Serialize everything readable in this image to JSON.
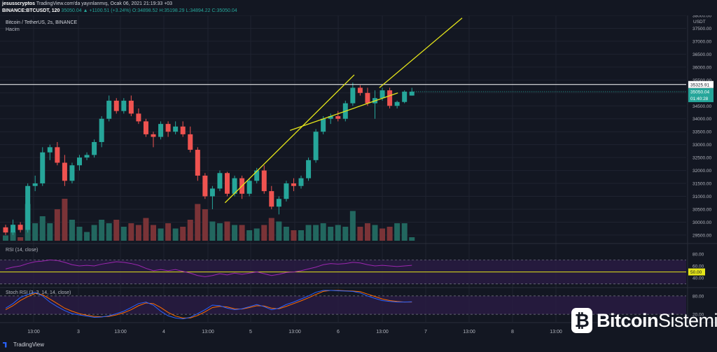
{
  "header": {
    "author": "jesusscryptos",
    "published": "TradingView.com'da yayınlanmış, Ocak 06, 2021 21:19:33 +03",
    "symbol": "BINANCE:BTCUSDT, 120",
    "last": "35050.04",
    "change": "▲ +1100.51 (+3.24%)",
    "ohlc": "O:34898.52 H:35198.29 L:34894.22 C:35050.04"
  },
  "chart_data": {
    "type": "candlestick",
    "title": "Bitcoin / TetherUS, 2s, BINANCE",
    "subtitle": "Hacim",
    "currency": "USDT",
    "ylim": [
      29200,
      38000
    ],
    "y_ticks": [
      29500,
      30000,
      30500,
      31000,
      31500,
      32000,
      32500,
      33000,
      33500,
      34000,
      34500,
      35000,
      35500,
      36000,
      36500,
      37000,
      37500,
      38000
    ],
    "x_ticks": [
      "13:00",
      "3",
      "13:00",
      "4",
      "13:00",
      "5",
      "13:00",
      "6",
      "13:00",
      "7",
      "13:00",
      "8",
      "13:00"
    ],
    "horizontal_line": 35325.91,
    "horizontal_line_label": "35325.91",
    "last_price_label": "35050.04",
    "countdown_label": "01:40:28",
    "candles": [
      [
        29800,
        29900,
        29500,
        29600
      ],
      [
        29600,
        30100,
        29500,
        29900
      ],
      [
        29900,
        30000,
        29600,
        29700
      ],
      [
        29700,
        31500,
        29600,
        31400
      ],
      [
        31400,
        31800,
        31200,
        31500
      ],
      [
        31500,
        32900,
        31400,
        32700
      ],
      [
        32700,
        33000,
        32400,
        32900
      ],
      [
        32900,
        33100,
        32200,
        32300
      ],
      [
        32300,
        32600,
        31400,
        31600
      ],
      [
        31600,
        32300,
        31500,
        32200
      ],
      [
        32200,
        32600,
        32000,
        32500
      ],
      [
        32500,
        32700,
        32400,
        32600
      ],
      [
        32600,
        33200,
        32500,
        33100
      ],
      [
        33100,
        34100,
        32900,
        34000
      ],
      [
        34000,
        34900,
        33900,
        34700
      ],
      [
        34700,
        34800,
        34200,
        34300
      ],
      [
        34300,
        34800,
        34200,
        34700
      ],
      [
        34700,
        34900,
        34100,
        34200
      ],
      [
        34200,
        34400,
        33800,
        33900
      ],
      [
        33900,
        34000,
        33300,
        33400
      ],
      [
        33400,
        33500,
        32900,
        33300
      ],
      [
        33300,
        33900,
        33200,
        33800
      ],
      [
        33800,
        33900,
        33300,
        33500
      ],
      [
        33500,
        33900,
        33400,
        33700
      ],
      [
        33700,
        33900,
        33300,
        33400
      ],
      [
        33400,
        33700,
        32700,
        32800
      ],
      [
        32800,
        32900,
        31600,
        31800
      ],
      [
        31800,
        31900,
        30900,
        31000
      ],
      [
        31000,
        31400,
        30500,
        31300
      ],
      [
        31300,
        32000,
        31200,
        31900
      ],
      [
        31900,
        31950,
        31000,
        31100
      ],
      [
        31100,
        31800,
        31000,
        31700
      ],
      [
        31700,
        31800,
        30900,
        31100
      ],
      [
        31100,
        31700,
        31000,
        31600
      ],
      [
        31600,
        32100,
        31500,
        32000
      ],
      [
        32000,
        32200,
        31100,
        31200
      ],
      [
        31200,
        31400,
        30500,
        30600
      ],
      [
        30600,
        31000,
        30300,
        30900
      ],
      [
        30900,
        31600,
        30800,
        31500
      ],
      [
        31500,
        31700,
        31200,
        31400
      ],
      [
        31400,
        31800,
        31300,
        31700
      ],
      [
        31700,
        32500,
        31600,
        32400
      ],
      [
        32400,
        33600,
        32300,
        33500
      ],
      [
        33500,
        34100,
        33400,
        34000
      ],
      [
        34000,
        34200,
        33800,
        34100
      ],
      [
        34100,
        34300,
        33900,
        34000
      ],
      [
        34000,
        34700,
        33900,
        34600
      ],
      [
        34600,
        35400,
        34500,
        35200
      ],
      [
        35200,
        35300,
        34900,
        35000
      ],
      [
        35000,
        35200,
        34500,
        34600
      ],
      [
        34600,
        35100,
        34000,
        34800
      ],
      [
        34800,
        35200,
        34700,
        35100
      ],
      [
        35100,
        35200,
        34400,
        34500
      ],
      [
        34500,
        34700,
        34400,
        34650
      ],
      [
        34650,
        35100,
        34600,
        35050
      ],
      [
        34898,
        35198,
        34894,
        35050
      ]
    ],
    "volume": [
      [
        0,
        "up",
        3
      ],
      [
        1,
        "up",
        5
      ],
      [
        2,
        "down",
        2
      ],
      [
        3,
        "up",
        21
      ],
      [
        4,
        "up",
        10
      ],
      [
        5,
        "up",
        14
      ],
      [
        6,
        "up",
        10
      ],
      [
        7,
        "down",
        18
      ],
      [
        8,
        "down",
        24
      ],
      [
        9,
        "up",
        12
      ],
      [
        10,
        "up",
        8
      ],
      [
        11,
        "up",
        5
      ],
      [
        12,
        "up",
        9
      ],
      [
        13,
        "up",
        12
      ],
      [
        14,
        "up",
        10
      ],
      [
        15,
        "down",
        12
      ],
      [
        16,
        "up",
        8
      ],
      [
        17,
        "down",
        10
      ],
      [
        18,
        "down",
        9
      ],
      [
        19,
        "down",
        13
      ],
      [
        20,
        "down",
        9
      ],
      [
        21,
        "up",
        7
      ],
      [
        22,
        "down",
        10
      ],
      [
        23,
        "up",
        7
      ],
      [
        24,
        "down",
        8
      ],
      [
        25,
        "down",
        12
      ],
      [
        26,
        "down",
        21
      ],
      [
        27,
        "down",
        18
      ],
      [
        28,
        "up",
        11
      ],
      [
        29,
        "up",
        10
      ],
      [
        30,
        "down",
        11
      ],
      [
        31,
        "up",
        9
      ],
      [
        32,
        "down",
        9
      ],
      [
        33,
        "up",
        6
      ],
      [
        34,
        "up",
        7
      ],
      [
        35,
        "down",
        9
      ],
      [
        36,
        "down",
        13
      ],
      [
        37,
        "up",
        11
      ],
      [
        38,
        "up",
        8
      ],
      [
        39,
        "down",
        6
      ],
      [
        40,
        "up",
        6
      ],
      [
        41,
        "up",
        9
      ],
      [
        42,
        "up",
        9
      ],
      [
        43,
        "up",
        10
      ],
      [
        44,
        "up",
        8
      ],
      [
        45,
        "up",
        9
      ],
      [
        46,
        "up",
        8
      ],
      [
        47,
        "up",
        17
      ],
      [
        48,
        "down",
        8
      ],
      [
        49,
        "down",
        10
      ],
      [
        50,
        "up",
        9
      ],
      [
        51,
        "down",
        7
      ],
      [
        52,
        "down",
        8
      ],
      [
        53,
        "up",
        10
      ],
      [
        54,
        "up",
        10
      ],
      [
        55,
        "up",
        2
      ]
    ],
    "trendlines": [
      {
        "from": [
          29.7,
          30750
        ],
        "to": [
          47.2,
          35700
        ]
      },
      {
        "from": [
          38.5,
          33550
        ],
        "to": [
          53.1,
          35000
        ]
      },
      {
        "from": [
          50.6,
          35200
        ],
        "to": [
          61.8,
          37900
        ]
      }
    ],
    "rsi": {
      "label": "RSI (14, close)",
      "ticks": [
        40,
        60,
        80
      ],
      "marker": "50.00",
      "values": [
        55,
        58,
        60,
        64,
        67,
        68,
        70,
        69,
        66,
        62,
        60,
        61,
        60,
        63,
        65,
        67,
        66,
        64,
        61,
        56,
        52,
        54,
        52,
        54,
        51,
        48,
        44,
        42,
        44,
        47,
        45,
        48,
        46,
        48,
        50,
        47,
        44,
        46,
        49,
        50,
        52,
        55,
        58,
        62,
        64,
        63,
        64,
        66,
        65,
        62,
        60,
        61,
        60,
        59,
        60,
        61
      ]
    },
    "stoch_rsi": {
      "label": "Stoch RSI (3, 3, 14, 14, close)",
      "ticks": [
        20,
        80
      ],
      "k": [
        40,
        55,
        75,
        85,
        92,
        80,
        60,
        45,
        32,
        22,
        18,
        14,
        10,
        11,
        15,
        22,
        30,
        42,
        55,
        60,
        50,
        30,
        15,
        8,
        5,
        10,
        22,
        35,
        50,
        48,
        40,
        35,
        38,
        45,
        52,
        45,
        35,
        40,
        52,
        60,
        70,
        80,
        92,
        98,
        98,
        97,
        96,
        95,
        90,
        80,
        72,
        65,
        62,
        60,
        60,
        61
      ],
      "d": [
        35,
        48,
        65,
        78,
        88,
        84,
        70,
        55,
        40,
        30,
        22,
        17,
        13,
        12,
        13,
        18,
        25,
        35,
        48,
        57,
        55,
        42,
        26,
        14,
        8,
        8,
        16,
        28,
        42,
        46,
        44,
        38,
        37,
        42,
        48,
        47,
        40,
        38,
        46,
        55,
        64,
        74,
        85,
        95,
        98,
        98,
        97,
        96,
        94,
        86,
        78,
        70,
        65,
        62,
        60,
        60
      ]
    },
    "colors": {
      "up": "#26a69a",
      "down": "#ef5350",
      "vol_up": "#22675f",
      "vol_down": "#7a3337",
      "grid": "#1f2330",
      "rsi_line": "#9c27b0",
      "band_fill": "#2a1b45",
      "k": "#2962ff",
      "d": "#ff6d00",
      "trendline": "#e5e51a"
    }
  },
  "footer": {
    "brand": "TradingView"
  },
  "watermark": {
    "icon": "₿",
    "part1": "Bitcoin",
    "part2": "Sistemi"
  }
}
